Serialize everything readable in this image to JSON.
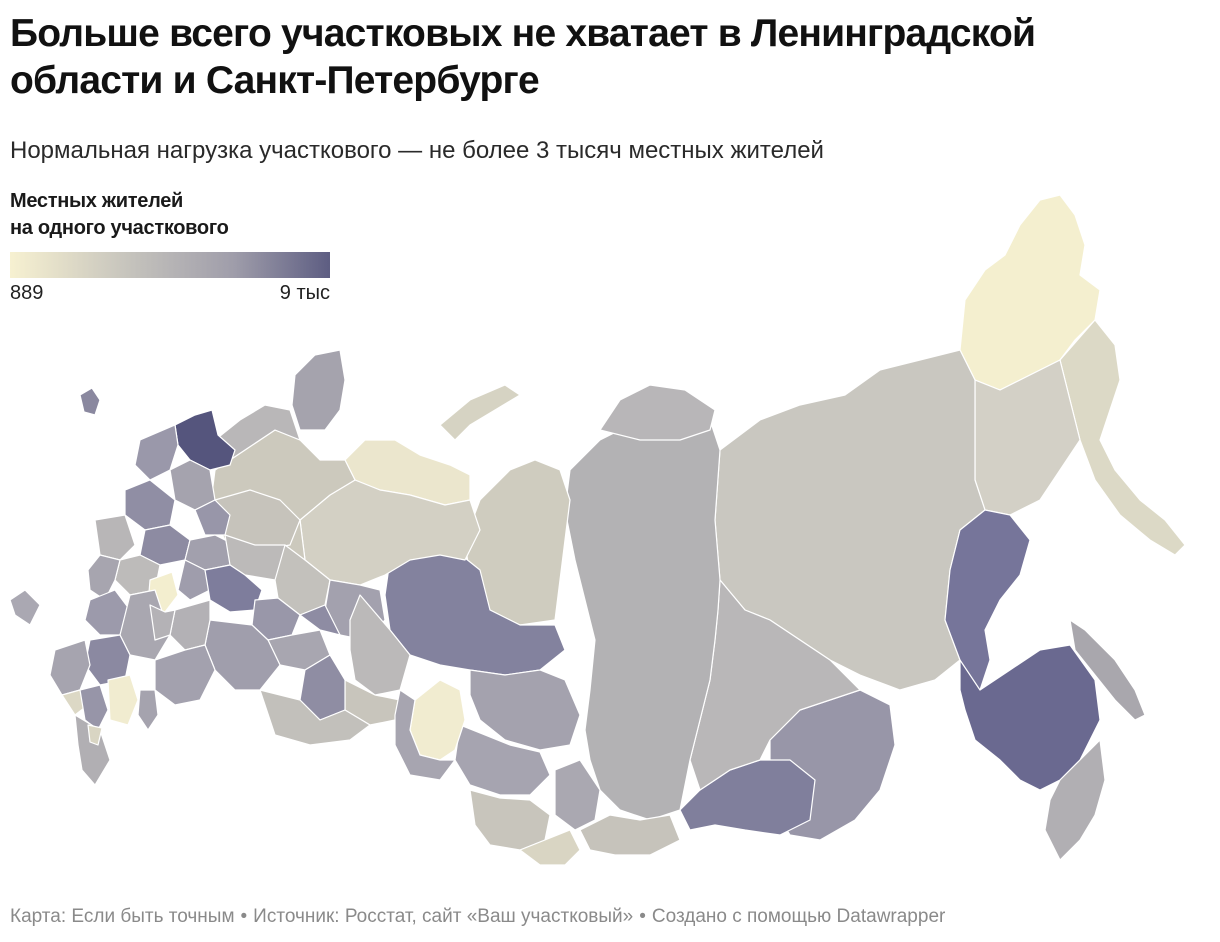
{
  "title_line1": "Больше всего участковых не хватает в Ленинградской",
  "title_line2": "области и Санкт-Петербурге",
  "subtitle": "Нормальная нагрузка участкового — не более 3 тысяч местных жителей",
  "legend": {
    "title_line1": "Местных жителей",
    "title_line2": "на одного участкового",
    "min_label": "889",
    "max_label": "9 тыс",
    "min_value": 889,
    "max_value": 9000,
    "colors": [
      "#f7f1d1",
      "#c2c0bb",
      "#9f9daa",
      "#5d5d82"
    ]
  },
  "footer": {
    "map_credit": "Карта: Если быть точным",
    "source": "Источник: Росстат, сайт «Ваш участковый»",
    "made_with": "Создано с помощью Datawrapper",
    "separator": "•"
  },
  "palette": {
    "lightest": "#f4efcf",
    "light": "#d6d3c3",
    "mid": "#c4c2bd",
    "mid_gray": "#b5b3b5",
    "purple_gray": "#a09eae",
    "purple": "#8a88a2",
    "dark": "#6f6e91",
    "darkest": "#55557d"
  }
}
